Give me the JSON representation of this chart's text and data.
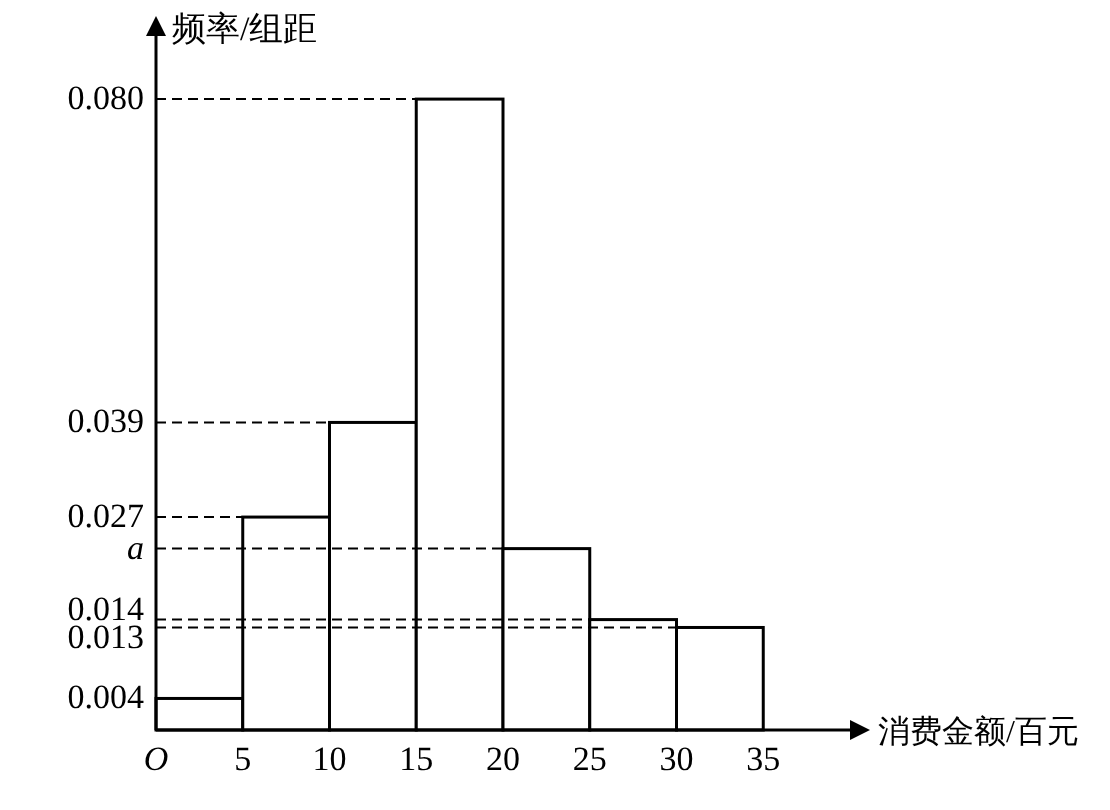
{
  "chart_data": {
    "type": "histogram",
    "xlabel": "消费金额/百元",
    "ylabel": "频率/组距",
    "bins": [
      0,
      5,
      10,
      15,
      20,
      25,
      30,
      35
    ],
    "values": [
      0.004,
      0.027,
      0.039,
      0.08,
      0.023,
      0.014,
      0.013
    ],
    "color": "#ffffff",
    "xlim": [
      0,
      40
    ],
    "xticks": [
      {
        "value": 0,
        "label": "O"
      },
      5,
      10,
      15,
      20,
      25,
      30,
      35
    ],
    "ylim": [
      0,
      0.088
    ],
    "yticks": [
      0.004,
      0.013,
      0.014,
      {
        "value": 0.023,
        "label": "a"
      },
      0.027,
      0.039,
      {
        "value": 0.08,
        "label": "0.080"
      }
    ],
    "ref_lines": [
      {
        "axis": "y",
        "value": 0.013,
        "line_style": "dashed"
      },
      {
        "axis": "y",
        "value": 0.014,
        "line_style": "dashed"
      },
      {
        "axis": "y",
        "value": 0.023,
        "line_style": "dashed"
      },
      {
        "axis": "y",
        "value": 0.027,
        "line_style": "dashed"
      },
      {
        "axis": "y",
        "value": 0.039,
        "line_style": "dashed"
      },
      {
        "axis": "y",
        "value": 0.08,
        "line_style": "dashed"
      }
    ]
  }
}
